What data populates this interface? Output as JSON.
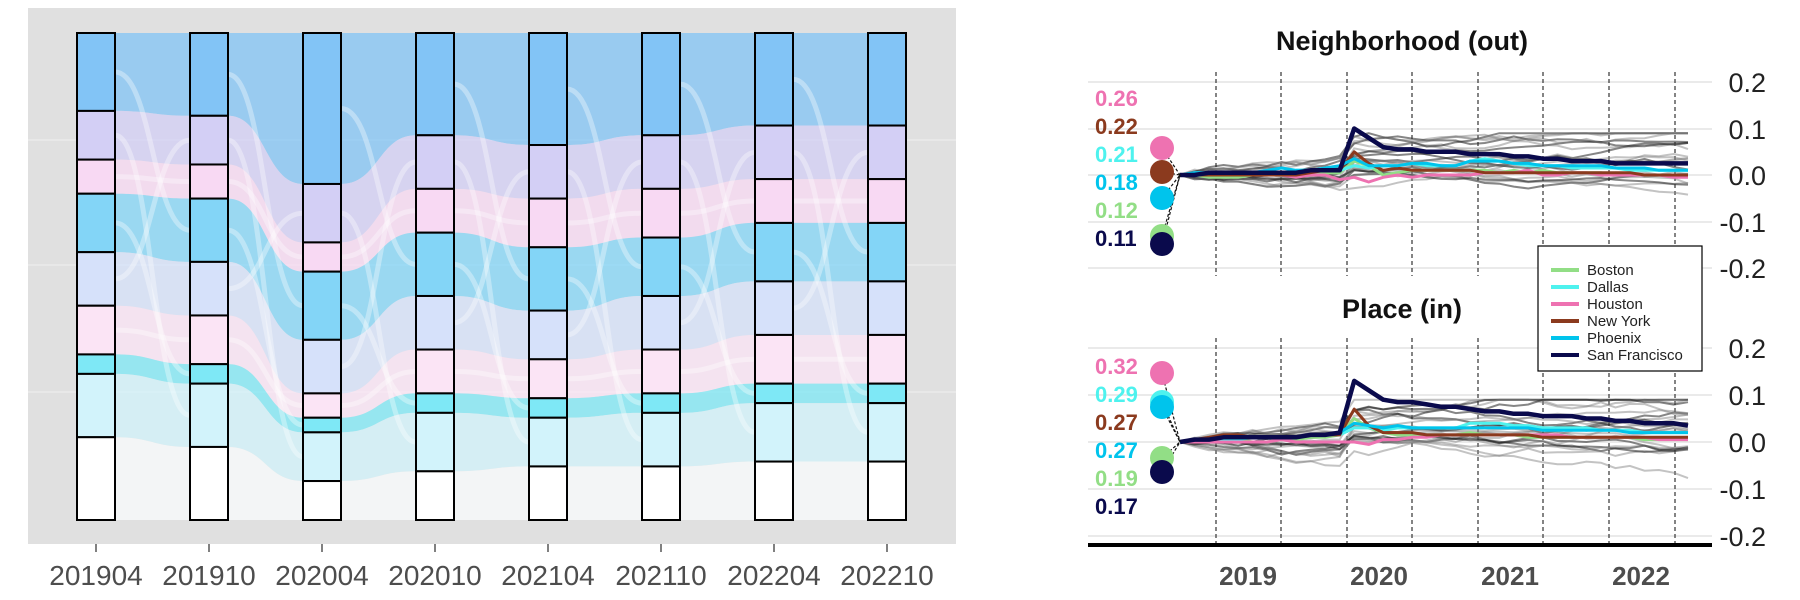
{
  "chart_data": [
    {
      "type": "alluvial",
      "categories": [
        "201904",
        "201910",
        "202004",
        "202010",
        "202104",
        "202110",
        "202204",
        "202210"
      ],
      "strata_colors": [
        "#82c4f6",
        "#d3cff5",
        "#f8d9f3",
        "#83d5f7",
        "#d6e1fa",
        "#fbe4f5",
        "#7ee8f6",
        "#d2f3fb",
        "#ffffff"
      ],
      "proportions": [
        [
          0.16,
          0.1,
          0.07,
          0.12,
          0.11,
          0.1,
          0.04,
          0.13,
          0.17
        ],
        [
          0.17,
          0.1,
          0.07,
          0.13,
          0.11,
          0.1,
          0.04,
          0.13,
          0.15
        ],
        [
          0.31,
          0.12,
          0.06,
          0.14,
          0.11,
          0.05,
          0.03,
          0.1,
          0.08
        ],
        [
          0.21,
          0.11,
          0.09,
          0.13,
          0.11,
          0.09,
          0.04,
          0.12,
          0.1
        ],
        [
          0.23,
          0.11,
          0.1,
          0.13,
          0.1,
          0.08,
          0.04,
          0.1,
          0.11
        ],
        [
          0.21,
          0.11,
          0.1,
          0.12,
          0.11,
          0.09,
          0.04,
          0.11,
          0.11
        ],
        [
          0.19,
          0.11,
          0.09,
          0.12,
          0.11,
          0.1,
          0.04,
          0.12,
          0.12
        ],
        [
          0.19,
          0.11,
          0.09,
          0.12,
          0.11,
          0.1,
          0.04,
          0.12,
          0.12
        ]
      ]
    },
    {
      "type": "line",
      "panels": [
        {
          "title": "Neighborhood (out)",
          "ylim": [
            -0.2,
            0.2
          ],
          "yticks": [
            "0.2",
            "0.1",
            "0.0",
            "-0.1",
            "-0.2"
          ],
          "ytick_values": [
            0.2,
            0.1,
            0.0,
            -0.1,
            -0.2
          ],
          "labels": [
            {
              "text": "0.26",
              "color": "#ee72b1"
            },
            {
              "text": "0.22",
              "color": "#8b3a1e"
            },
            {
              "text": "0.21",
              "color": "#4ef2ee"
            },
            {
              "text": "0.18",
              "color": "#00c4ec"
            },
            {
              "text": "0.12",
              "color": "#92de86"
            },
            {
              "text": "0.11",
              "color": "#0a0a4c"
            }
          ],
          "series": [
            {
              "name": "Boston",
              "color": "#92de86",
              "values": [
                0,
                0.0,
                -0.005,
                -0.005,
                -0.005,
                0.0,
                0.0,
                0.0,
                0.0,
                0.0,
                0.005,
                0.005,
                0.03,
                0.02,
                0.0,
                0.005,
                0.01,
                0.01,
                0.01,
                0.01,
                0.01,
                0.01,
                0.005,
                0.01,
                0.005,
                0.01,
                0.005,
                0.005,
                0.005,
                0.005,
                0.0,
                0.0,
                0.0,
                0.0,
                0.0,
                0.0
              ]
            },
            {
              "name": "Dallas",
              "color": "#4ef2ee",
              "values": [
                0,
                0.005,
                0.005,
                0.005,
                0.005,
                0.005,
                0.005,
                0.005,
                0.01,
                0.01,
                0.01,
                0.01,
                0.02,
                0.015,
                0.02,
                0.02,
                0.025,
                0.02,
                0.02,
                0.02,
                0.03,
                0.035,
                0.03,
                0.025,
                0.02,
                0.02,
                0.02,
                0.015,
                0.015,
                0.015,
                0.015,
                0.01,
                0.01,
                0.01,
                0.01,
                0.01
              ]
            },
            {
              "name": "Houston",
              "color": "#ee72b1",
              "values": [
                0,
                0.0,
                0.0,
                0.0,
                0.0,
                0.0,
                0.0,
                0.0,
                -0.005,
                0.0,
                0.0,
                -0.01,
                -0.005,
                -0.015,
                -0.005,
                0.0,
                -0.005,
                0.0,
                0.0,
                0.0,
                0.0,
                0.005,
                0.005,
                0.005,
                0.01,
                0.0,
                0.0,
                0.005,
                0.005,
                0.0,
                0.0,
                0.0,
                0.0,
                0.0,
                -0.005,
                -0.005
              ]
            },
            {
              "name": "New York",
              "color": "#8b3a1e",
              "values": [
                0,
                0.0,
                0.0,
                0.0,
                0.0,
                0.0,
                0.0,
                0.0,
                0.0,
                0.005,
                0.01,
                0.01,
                0.05,
                0.025,
                0.01,
                0.015,
                0.01,
                0.01,
                0.01,
                0.01,
                0.01,
                0.005,
                0.005,
                0.005,
                0.005,
                0.005,
                0.005,
                0.005,
                0.005,
                0.005,
                0.005,
                0.005,
                0.0,
                0.0,
                0.0,
                0.0
              ]
            },
            {
              "name": "Phoenix",
              "color": "#00c4ec",
              "values": [
                0,
                0.005,
                0.005,
                0.005,
                0.005,
                0.005,
                0.01,
                0.015,
                0.01,
                0.01,
                0.015,
                0.02,
                0.035,
                0.02,
                0.02,
                0.02,
                0.025,
                0.025,
                0.02,
                0.02,
                0.03,
                0.03,
                0.03,
                0.025,
                0.025,
                0.02,
                0.02,
                0.02,
                0.02,
                0.02,
                0.015,
                0.015,
                0.015,
                0.01,
                0.01,
                0.01
              ]
            },
            {
              "name": "San Francisco",
              "color": "#0a0a4c",
              "values": [
                0,
                0.0,
                0.005,
                0.005,
                0.005,
                0.005,
                0.005,
                0.005,
                0.005,
                0.01,
                0.01,
                0.01,
                0.1,
                0.08,
                0.06,
                0.055,
                0.055,
                0.05,
                0.05,
                0.05,
                0.045,
                0.045,
                0.045,
                0.04,
                0.04,
                0.035,
                0.035,
                0.03,
                0.03,
                0.03,
                0.025,
                0.025,
                0.025,
                0.025,
                0.025,
                0.025
              ]
            }
          ]
        },
        {
          "title": "Place (in)",
          "ylim": [
            -0.2,
            0.2
          ],
          "yticks": [
            "0.2",
            "0.1",
            "0.0",
            "-0.1",
            "-0.2"
          ],
          "ytick_values": [
            0.2,
            0.1,
            0.0,
            -0.1,
            -0.2
          ],
          "labels": [
            {
              "text": "0.32",
              "color": "#ee72b1"
            },
            {
              "text": "0.29",
              "color": "#4ef2ee"
            },
            {
              "text": "0.27",
              "color": "#8b3a1e"
            },
            {
              "text": "0.27",
              "color": "#00c4ec"
            },
            {
              "text": "0.19",
              "color": "#92de86"
            },
            {
              "text": "0.17",
              "color": "#0a0a4c"
            }
          ],
          "series": [
            {
              "name": "Boston",
              "color": "#92de86",
              "values": [
                0,
                0.0,
                0.0,
                0.005,
                0.005,
                0.0,
                0.0,
                0.005,
                0.005,
                0.01,
                0.01,
                0.015,
                0.05,
                0.03,
                0.02,
                0.015,
                0.015,
                0.015,
                0.015,
                0.015,
                0.02,
                0.015,
                0.015,
                0.015,
                0.01,
                0.01,
                0.01,
                0.01,
                0.01,
                0.01,
                0.01,
                0.01,
                0.005,
                0.005,
                0.005,
                0.005
              ]
            },
            {
              "name": "Dallas",
              "color": "#4ef2ee",
              "values": [
                0,
                0.005,
                0.005,
                0.005,
                0.005,
                0.01,
                0.01,
                0.01,
                0.01,
                0.015,
                0.015,
                0.015,
                0.03,
                0.03,
                0.025,
                0.03,
                0.03,
                0.03,
                0.03,
                0.03,
                0.04,
                0.04,
                0.04,
                0.035,
                0.035,
                0.03,
                0.03,
                0.03,
                0.03,
                0.025,
                0.025,
                0.025,
                0.02,
                0.02,
                0.02,
                0.02
              ]
            },
            {
              "name": "Houston",
              "color": "#ee72b1",
              "values": [
                0,
                0.0,
                0.0,
                0.0,
                0.0,
                0.0,
                0.0,
                0.005,
                0.0,
                0.0,
                0.0,
                0.0,
                0.0,
                -0.005,
                0.005,
                0.005,
                0.01,
                0.01,
                0.015,
                0.015,
                0.015,
                0.015,
                0.015,
                0.015,
                0.015,
                0.015,
                0.015,
                0.01,
                0.01,
                0.01,
                0.01,
                0.01,
                0.01,
                0.005,
                0.005,
                0.005
              ]
            },
            {
              "name": "New York",
              "color": "#8b3a1e",
              "values": [
                0,
                0.005,
                0.01,
                0.015,
                0.015,
                0.01,
                0.01,
                0.01,
                0.01,
                0.015,
                0.015,
                0.015,
                0.07,
                0.035,
                0.02,
                0.02,
                0.02,
                0.015,
                0.015,
                0.015,
                0.015,
                0.015,
                0.015,
                0.015,
                0.015,
                0.01,
                0.01,
                0.01,
                0.01,
                0.01,
                0.01,
                0.01,
                0.01,
                0.01,
                0.01,
                0.01
              ]
            },
            {
              "name": "Phoenix",
              "color": "#00c4ec",
              "values": [
                0,
                0.005,
                0.005,
                0.01,
                0.01,
                0.01,
                0.01,
                0.01,
                0.01,
                0.015,
                0.015,
                0.02,
                0.04,
                0.035,
                0.03,
                0.035,
                0.03,
                0.03,
                0.03,
                0.03,
                0.03,
                0.03,
                0.03,
                0.03,
                0.03,
                0.025,
                0.025,
                0.025,
                0.025,
                0.025,
                0.025,
                0.02,
                0.02,
                0.02,
                0.02,
                0.02
              ]
            },
            {
              "name": "San Francisco",
              "color": "#0a0a4c",
              "values": [
                0,
                0.005,
                0.005,
                0.01,
                0.01,
                0.01,
                0.01,
                0.01,
                0.01,
                0.015,
                0.015,
                0.02,
                0.13,
                0.11,
                0.09,
                0.085,
                0.085,
                0.08,
                0.075,
                0.075,
                0.07,
                0.065,
                0.065,
                0.06,
                0.06,
                0.055,
                0.055,
                0.055,
                0.05,
                0.05,
                0.045,
                0.045,
                0.04,
                0.04,
                0.04,
                0.035
              ]
            }
          ]
        }
      ],
      "xaxis": {
        "labels": [
          "2019",
          "2020",
          "2021",
          "2022"
        ]
      },
      "legend": {
        "placement": "right",
        "items": [
          {
            "name": "Boston",
            "color": "#92de86"
          },
          {
            "name": "Dallas",
            "color": "#4ef2ee"
          },
          {
            "name": "Houston",
            "color": "#ee72b1"
          },
          {
            "name": "New York",
            "color": "#8b3a1e"
          },
          {
            "name": "Phoenix",
            "color": "#00c4ec"
          },
          {
            "name": "San Francisco",
            "color": "#0a0a4c"
          }
        ]
      }
    }
  ]
}
